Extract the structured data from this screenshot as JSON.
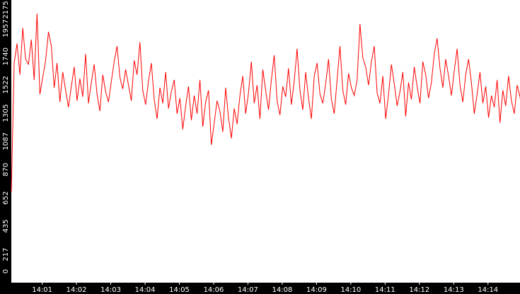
{
  "colors": {
    "background": "#000000",
    "plot_area": "#ffffff",
    "series_line": "#ff0000",
    "tick_text": "#ffffff"
  },
  "chart_data": {
    "type": "line",
    "title": "",
    "xlabel": "",
    "ylabel": "",
    "ylim": [
      0,
      2175
    ],
    "yticks": [
      "0",
      "217",
      "435",
      "652",
      "870",
      "1087",
      "1305",
      "1522",
      "1740",
      "1957",
      "2175"
    ],
    "xlim": [
      "14:00:06",
      "14:14:56"
    ],
    "xticks": [
      "14:01",
      "14:02",
      "14:03",
      "14:04",
      "14:05",
      "14:06",
      "14:07",
      "14:08",
      "14:09",
      "14:10",
      "14:11",
      "14:12",
      "14:13",
      "14:14"
    ],
    "grid": false,
    "legend": "none",
    "series": [
      {
        "x_start": "14:00:06",
        "x_step_seconds": 5,
        "values": [
          700,
          1690,
          1840,
          1600,
          1960,
          1720,
          1680,
          1870,
          1560,
          2070,
          1450,
          1580,
          1710,
          1930,
          1820,
          1500,
          1690,
          1390,
          1620,
          1480,
          1350,
          1510,
          1660,
          1400,
          1570,
          1430,
          1760,
          1380,
          1540,
          1680,
          1450,
          1320,
          1600,
          1470,
          1390,
          1550,
          1700,
          1820,
          1580,
          1490,
          1640,
          1520,
          1400,
          1710,
          1600,
          1850,
          1480,
          1370,
          1550,
          1690,
          1410,
          1260,
          1500,
          1380,
          1620,
          1340,
          1470,
          1560,
          1300,
          1420,
          1180,
          1360,
          1510,
          1250,
          1440,
          1300,
          1560,
          1200,
          1390,
          1480,
          1060,
          1230,
          1400,
          1320,
          1160,
          1500,
          1270,
          1110,
          1340,
          1220,
          1440,
          1590,
          1300,
          1460,
          1700,
          1380,
          1520,
          1260,
          1640,
          1480,
          1330,
          1560,
          1750,
          1400,
          1290,
          1510,
          1430,
          1650,
          1370,
          1550,
          1800,
          1480,
          1330,
          1620,
          1420,
          1260,
          1590,
          1690,
          1450,
          1380,
          1530,
          1720,
          1410,
          1300,
          1560,
          1820,
          1480,
          1370,
          1610,
          1500,
          1440,
          1560,
          1990,
          1730,
          1660,
          1520,
          1700,
          1820,
          1460,
          1380,
          1590,
          1260,
          1450,
          1680,
          1530,
          1360,
          1470,
          1620,
          1280,
          1540,
          1410,
          1660,
          1510,
          1380,
          1700,
          1600,
          1420,
          1540,
          1760,
          1880,
          1650,
          1500,
          1720,
          1590,
          1440,
          1630,
          1800,
          1520,
          1390,
          1600,
          1720,
          1540,
          1300,
          1450,
          1620,
          1380,
          1510,
          1270,
          1440,
          1350,
          1560,
          1230,
          1480,
          1360,
          1590,
          1400,
          1300,
          1520,
          1430,
          1270,
          1500,
          1620,
          1380,
          1470,
          1690,
          1540,
          1400,
          1600,
          1740,
          1480,
          1360,
          1530,
          1690,
          1450,
          1310,
          1570,
          1660,
          1470,
          1380,
          1500,
          1640,
          1590,
          1700,
          1520,
          1450,
          1600,
          1780,
          1540,
          1320,
          1460,
          1520,
          1260,
          1380,
          1500,
          1190,
          1330,
          1460,
          1280,
          1420,
          1050,
          1230,
          1360,
          1460,
          1400,
          1520,
          1300,
          1440,
          1560,
          1380,
          1490,
          1620,
          1540,
          1430,
          1720,
          1680,
          1530,
          1650,
          1800,
          1570,
          1490,
          1610,
          1520,
          1460,
          1700,
          1380,
          1560,
          1640,
          1450,
          1520,
          1600,
          1420,
          1550,
          1680,
          1500,
          1630,
          1760,
          1540,
          1460,
          1720,
          1600
        ]
      }
    ]
  }
}
